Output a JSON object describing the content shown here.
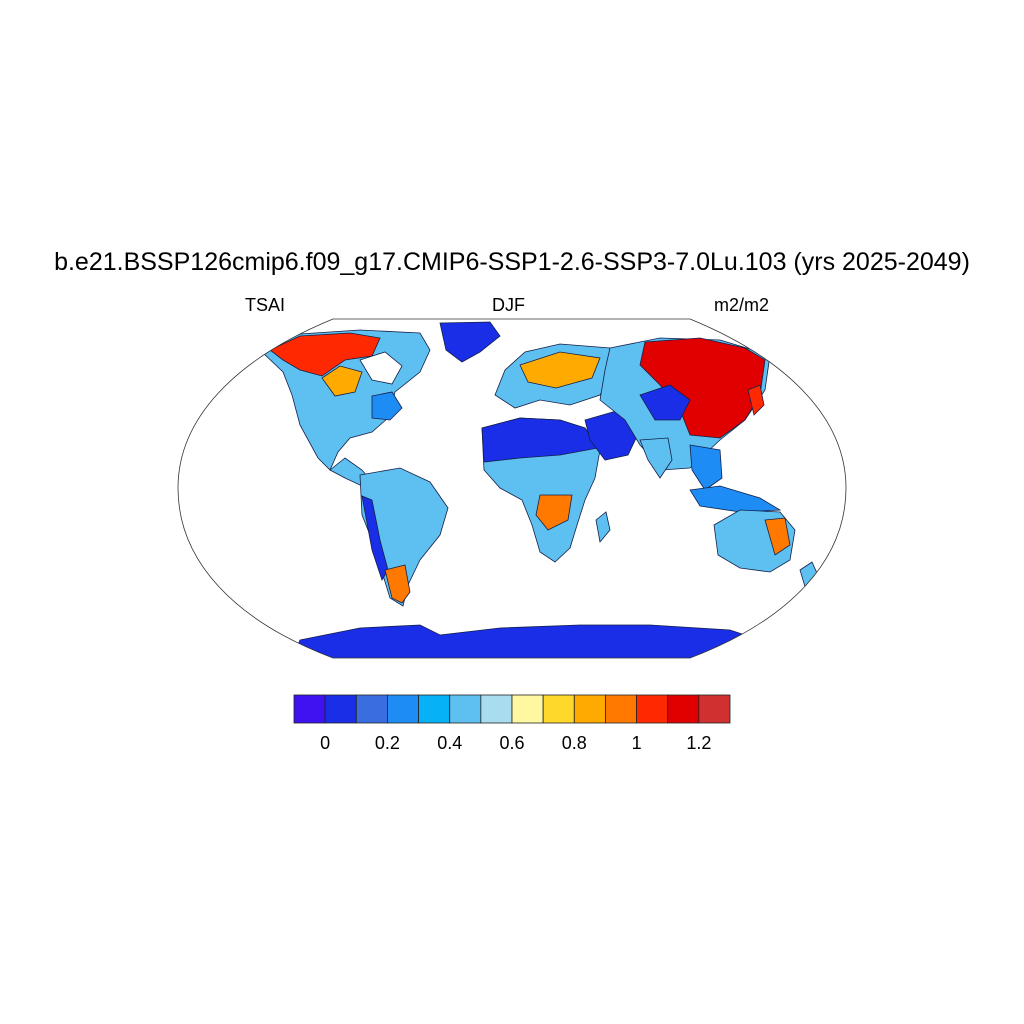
{
  "title": "b.e21.BSSP126cmip6.f09_g17.CMIP6-SSP1-2.6-SSP3-7.0Lu.103 (yrs 2025-2049)",
  "variable": "TSAI",
  "season": "DJF",
  "units": "m2/m2",
  "colorbar": {
    "colors": [
      "#3f13f0",
      "#1a2ee8",
      "#3a6de0",
      "#1e8cf5",
      "#07b1f5",
      "#5ec0f0",
      "#aadcf0",
      "#fff8a0",
      "#ffd82c",
      "#ffaa00",
      "#ff7800",
      "#ff2800",
      "#e00000",
      "#d03030"
    ],
    "tick_labels": [
      "0",
      "0.2",
      "0.4",
      "0.6",
      "0.8",
      "1",
      "1.2"
    ],
    "tick_positions": [
      1,
      3,
      5,
      7,
      9,
      11,
      13
    ]
  }
}
